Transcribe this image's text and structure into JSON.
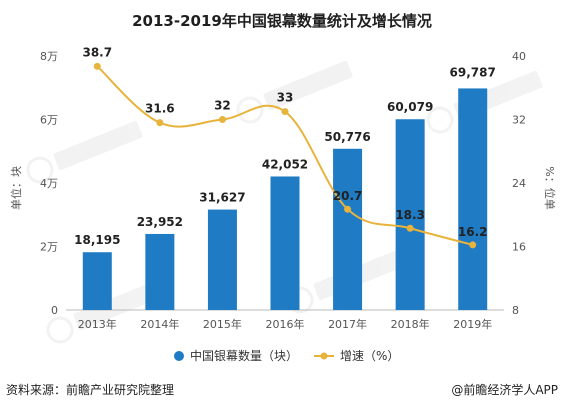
{
  "chart_data": {
    "type": "bar",
    "title": "2013-2019年中国银幕数量统计及增长情况",
    "categories": [
      "2013年",
      "2014年",
      "2015年",
      "2016年",
      "2017年",
      "2018年",
      "2019年"
    ],
    "series": [
      {
        "name": "中国银幕数量（块）",
        "type": "bar",
        "axis": "left",
        "values": [
          18195,
          23952,
          31627,
          42052,
          50776,
          60079,
          69787
        ],
        "labels": [
          "18,195",
          "23,952",
          "31,627",
          "42,052",
          "50,776",
          "60,079",
          "69,787"
        ],
        "color": "#1f7bc4"
      },
      {
        "name": "增速（%）",
        "type": "line",
        "axis": "right",
        "values": [
          38.7,
          31.6,
          32,
          33,
          20.7,
          18.3,
          16.2
        ],
        "labels": [
          "38.7",
          "31.6",
          "32",
          "33",
          "20.7",
          "18.3",
          "16.2"
        ],
        "color": "#e8b33b"
      }
    ],
    "ylabel": "单位：块",
    "y2label": "%：位单",
    "ylim": [
      0,
      80000
    ],
    "yticks": [
      0,
      20000,
      40000,
      60000,
      80000
    ],
    "ytick_labels": [
      "0",
      "2万",
      "4万",
      "6万",
      "8万"
    ],
    "y2lim": [
      8,
      40
    ],
    "y2ticks": [
      8,
      16,
      24,
      32,
      40
    ],
    "y2tick_labels": [
      "8",
      "16",
      "24",
      "32",
      "40"
    ],
    "legend_position": "bottom",
    "grid": false
  },
  "footer": {
    "source": "资料来源：前瞻产业研究院整理",
    "brand": "@前瞻经济学人APP"
  }
}
